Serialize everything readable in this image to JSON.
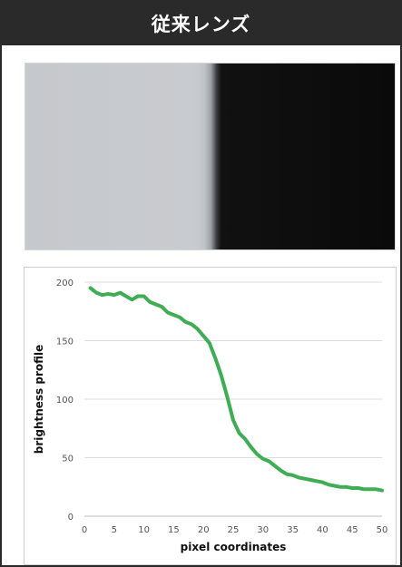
{
  "header": {
    "title": "従来レンズ"
  },
  "photo": {
    "description_color_left": "#c6c9cd",
    "description_color_right": "#0b0b0b"
  },
  "chart_data": {
    "type": "line",
    "title": "",
    "xlabel": "pixel coordinates",
    "ylabel": "brightness profile",
    "xlim": [
      0,
      50
    ],
    "ylim": [
      0,
      200
    ],
    "x_ticks": [
      "0",
      "5",
      "10",
      "15",
      "20",
      "25",
      "30",
      "35",
      "40",
      "45",
      "50"
    ],
    "y_ticks": [
      "0",
      "50",
      "100",
      "150",
      "200"
    ],
    "grid": true,
    "legend": "none",
    "series": [
      {
        "color": "#3ead54",
        "x": [
          1,
          2,
          3,
          4,
          5,
          6,
          7,
          8,
          9,
          10,
          11,
          12,
          13,
          14,
          15,
          16,
          17,
          18,
          19,
          20,
          21,
          22,
          23,
          24,
          25,
          26,
          27,
          28,
          29,
          30,
          31,
          32,
          33,
          34,
          35,
          36,
          37,
          38,
          39,
          40,
          41,
          42,
          43,
          44,
          45,
          46,
          47,
          48,
          49,
          50
        ],
        "values": [
          195,
          191,
          189,
          190,
          189,
          191,
          188,
          185,
          188,
          188,
          183,
          181,
          179,
          174,
          172,
          170,
          166,
          164,
          160,
          154,
          148,
          135,
          120,
          102,
          82,
          71,
          66,
          59,
          53,
          49,
          47,
          43,
          39,
          36,
          35,
          33,
          32,
          31,
          30,
          29,
          27,
          26,
          25,
          25,
          24,
          24,
          23,
          23,
          23,
          22
        ]
      }
    ]
  }
}
